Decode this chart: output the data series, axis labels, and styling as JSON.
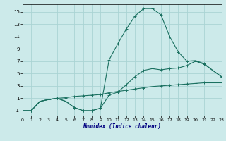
{
  "xlabel": "Humidex (Indice chaleur)",
  "xlim": [
    0,
    23
  ],
  "ylim": [
    -1.8,
    16.2
  ],
  "yticks": [
    -1,
    1,
    3,
    5,
    7,
    9,
    11,
    13,
    15
  ],
  "xticks": [
    0,
    1,
    2,
    3,
    4,
    5,
    6,
    7,
    8,
    9,
    10,
    11,
    12,
    13,
    14,
    15,
    16,
    17,
    18,
    19,
    20,
    21,
    22,
    23
  ],
  "bg_color": "#cceaea",
  "grid_color": "#aad4d4",
  "line_color": "#1a7060",
  "line1_x": [
    0,
    1,
    2,
    3,
    4,
    5,
    6,
    7,
    8,
    9,
    10,
    11,
    12,
    13,
    14,
    15,
    16,
    17,
    18,
    19,
    20,
    21,
    22,
    23
  ],
  "line1_y": [
    -1,
    -1,
    0.5,
    0.8,
    1.0,
    1.1,
    1.3,
    1.4,
    1.5,
    1.6,
    1.9,
    2.1,
    2.3,
    2.5,
    2.7,
    2.9,
    3.0,
    3.1,
    3.2,
    3.3,
    3.4,
    3.5,
    3.5,
    3.5
  ],
  "line2_x": [
    0,
    1,
    2,
    3,
    4,
    5,
    6,
    7,
    8,
    9,
    10,
    11,
    12,
    13,
    14,
    15,
    16,
    17,
    18,
    19,
    20,
    21,
    22,
    23
  ],
  "line2_y": [
    -1,
    -1,
    0.5,
    0.8,
    1.0,
    0.5,
    -0.5,
    -1,
    -1,
    -0.6,
    1.5,
    2.0,
    3.2,
    4.5,
    5.5,
    5.8,
    5.6,
    5.8,
    5.9,
    6.3,
    7.0,
    6.5,
    5.5,
    4.5
  ],
  "line3_x": [
    0,
    1,
    2,
    3,
    4,
    5,
    6,
    7,
    8,
    9,
    10,
    11,
    12,
    13,
    14,
    15,
    16,
    17,
    18,
    19,
    20,
    21,
    22,
    23
  ],
  "line3_y": [
    -1,
    -1,
    0.5,
    0.8,
    1.0,
    0.5,
    -0.5,
    -1,
    -1,
    -0.6,
    7.2,
    9.8,
    12.2,
    14.3,
    15.5,
    15.5,
    14.5,
    11.0,
    8.5,
    7.0,
    7.1,
    6.6,
    5.5,
    4.5
  ]
}
